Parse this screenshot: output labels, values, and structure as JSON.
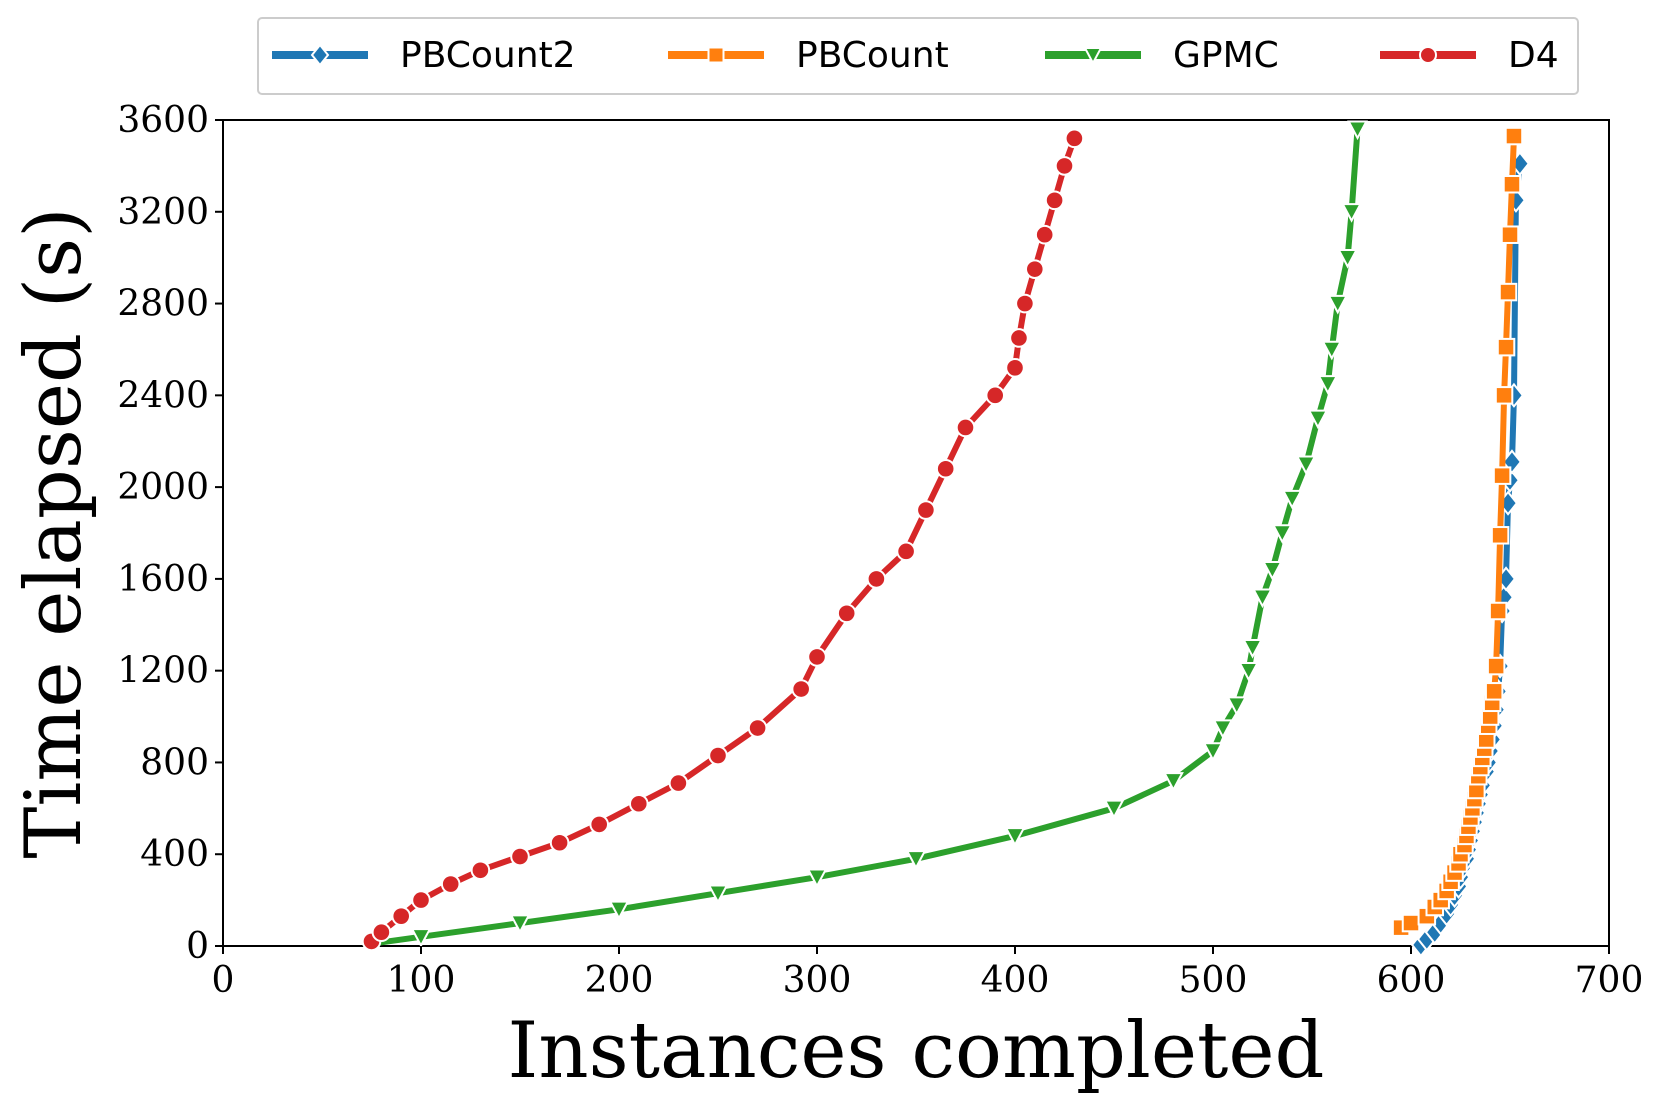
{
  "chart_data": {
    "type": "line",
    "title": "",
    "xlabel": "Instances completed",
    "ylabel": "Time elapsed (s)",
    "xlim": [
      0,
      700
    ],
    "ylim": [
      0,
      3600
    ],
    "xticks": [
      "0",
      "100",
      "200",
      "300",
      "400",
      "500",
      "600",
      "700"
    ],
    "yticks": [
      "0",
      "400",
      "800",
      "1200",
      "1600",
      "2000",
      "2400",
      "2800",
      "3200",
      "3600"
    ],
    "grid": false,
    "legend_position": "top",
    "series": [
      {
        "name": "PBCount2",
        "color": "#1f77b4",
        "marker": "diamond",
        "points": [
          [
            605,
            5
          ],
          [
            608,
            30
          ],
          [
            612,
            60
          ],
          [
            615,
            100
          ],
          [
            618,
            140
          ],
          [
            620,
            180
          ],
          [
            622,
            220
          ],
          [
            624,
            260
          ],
          [
            625,
            300
          ],
          [
            626,
            340
          ],
          [
            628,
            380
          ],
          [
            629,
            420
          ],
          [
            630,
            460
          ],
          [
            631,
            500
          ],
          [
            632,
            540
          ],
          [
            633,
            580
          ],
          [
            634,
            620
          ],
          [
            635,
            660
          ],
          [
            636,
            700
          ],
          [
            638,
            760
          ],
          [
            639,
            800
          ],
          [
            640,
            850
          ],
          [
            641,
            900
          ],
          [
            642,
            960
          ],
          [
            643,
            1030
          ],
          [
            644,
            1110
          ],
          [
            645,
            1220
          ],
          [
            646,
            1460
          ],
          [
            647,
            1520
          ],
          [
            648,
            1600
          ],
          [
            649,
            1930
          ],
          [
            650,
            2030
          ],
          [
            651,
            2110
          ],
          [
            652,
            2400
          ],
          [
            653,
            3250
          ],
          [
            655,
            3410
          ]
        ]
      },
      {
        "name": "PBCount",
        "color": "#ff7f0e",
        "marker": "square",
        "points": [
          [
            595,
            80
          ],
          [
            600,
            100
          ],
          [
            608,
            130
          ],
          [
            612,
            170
          ],
          [
            615,
            200
          ],
          [
            618,
            240
          ],
          [
            620,
            280
          ],
          [
            622,
            320
          ],
          [
            624,
            360
          ],
          [
            625,
            400
          ],
          [
            627,
            440
          ],
          [
            628,
            480
          ],
          [
            629,
            520
          ],
          [
            630,
            560
          ],
          [
            631,
            600
          ],
          [
            632,
            640
          ],
          [
            633,
            680
          ],
          [
            634,
            740
          ],
          [
            635,
            780
          ],
          [
            636,
            820
          ],
          [
            637,
            860
          ],
          [
            638,
            900
          ],
          [
            639,
            960
          ],
          [
            640,
            1000
          ],
          [
            641,
            1060
          ],
          [
            642,
            1110
          ],
          [
            643,
            1220
          ],
          [
            644,
            1460
          ],
          [
            645,
            1790
          ],
          [
            646,
            2050
          ],
          [
            647,
            2400
          ],
          [
            648,
            2610
          ],
          [
            649,
            2850
          ],
          [
            650,
            3100
          ],
          [
            651,
            3320
          ],
          [
            652,
            3530
          ]
        ]
      },
      {
        "name": "GPMC",
        "color": "#2ca02c",
        "marker": "triangle-down",
        "points": [
          [
            75,
            10
          ],
          [
            100,
            40
          ],
          [
            150,
            100
          ],
          [
            200,
            160
          ],
          [
            250,
            230
          ],
          [
            300,
            300
          ],
          [
            350,
            380
          ],
          [
            400,
            480
          ],
          [
            450,
            600
          ],
          [
            480,
            720
          ],
          [
            500,
            850
          ],
          [
            505,
            950
          ],
          [
            512,
            1050
          ],
          [
            518,
            1200
          ],
          [
            520,
            1300
          ],
          [
            525,
            1520
          ],
          [
            530,
            1640
          ],
          [
            535,
            1800
          ],
          [
            540,
            1950
          ],
          [
            547,
            2100
          ],
          [
            553,
            2300
          ],
          [
            558,
            2450
          ],
          [
            560,
            2600
          ],
          [
            563,
            2800
          ],
          [
            568,
            3000
          ],
          [
            570,
            3200
          ],
          [
            573,
            3560
          ]
        ]
      },
      {
        "name": "D4",
        "color": "#d62728",
        "marker": "circle",
        "points": [
          [
            75,
            20
          ],
          [
            80,
            60
          ],
          [
            90,
            130
          ],
          [
            100,
            200
          ],
          [
            115,
            270
          ],
          [
            130,
            330
          ],
          [
            150,
            390
          ],
          [
            170,
            450
          ],
          [
            190,
            530
          ],
          [
            210,
            620
          ],
          [
            230,
            710
          ],
          [
            250,
            830
          ],
          [
            270,
            950
          ],
          [
            292,
            1120
          ],
          [
            300,
            1260
          ],
          [
            315,
            1450
          ],
          [
            330,
            1600
          ],
          [
            345,
            1720
          ],
          [
            355,
            1900
          ],
          [
            365,
            2080
          ],
          [
            375,
            2260
          ],
          [
            390,
            2400
          ],
          [
            400,
            2520
          ],
          [
            402,
            2650
          ],
          [
            405,
            2800
          ],
          [
            410,
            2950
          ],
          [
            415,
            3100
          ],
          [
            420,
            3250
          ],
          [
            425,
            3400
          ],
          [
            430,
            3520
          ]
        ]
      }
    ]
  }
}
